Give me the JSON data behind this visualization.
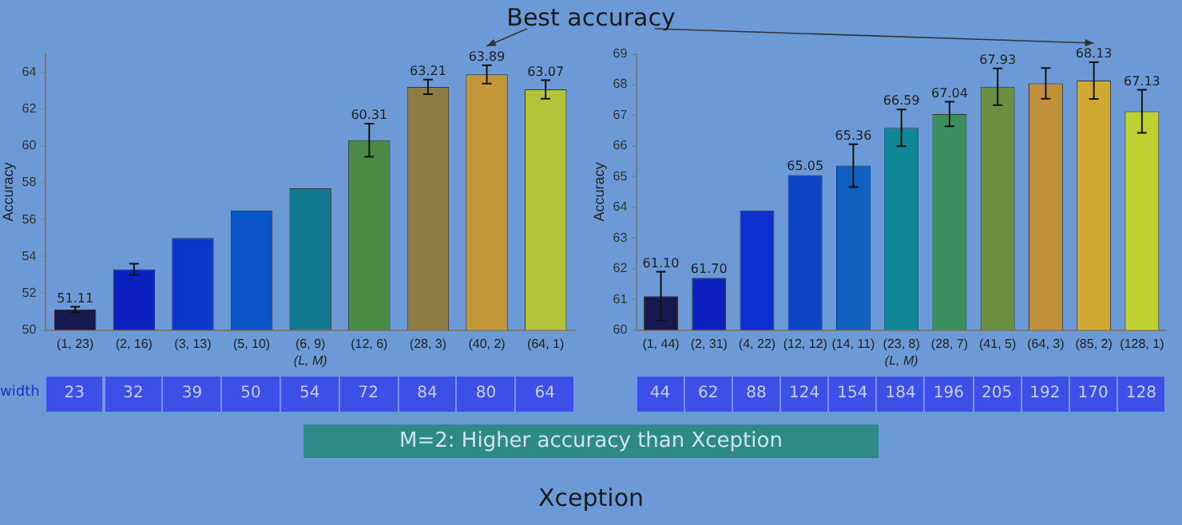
{
  "chart_data": [
    {
      "type": "bar",
      "ylabel": "Accuracy",
      "xlabel": "(L, M)",
      "categories": [
        "(1, 23)",
        "(2, 16)",
        "(3, 13)",
        "(5, 10)",
        "(6, 9)",
        "(12, 6)",
        "(28, 3)",
        "(40, 2)",
        "(64, 1)"
      ],
      "values": [
        51.11,
        53.3,
        55.0,
        56.5,
        57.7,
        60.31,
        63.21,
        63.89,
        63.07
      ],
      "colors": [
        "#16184f",
        "#0b20bf",
        "#0c38c9",
        "#0b55c6",
        "#10788f",
        "#4a8a45",
        "#8d7d45",
        "#c4963a",
        "#b3c43a"
      ],
      "errors": [
        0.15,
        0.3,
        null,
        null,
        null,
        0.9,
        0.4,
        0.5,
        0.5
      ],
      "value_labels": [
        "51.11",
        null,
        null,
        null,
        null,
        "60.31",
        "63.21",
        "63.89",
        "63.07"
      ],
      "ylim": [
        50,
        65
      ],
      "yticks": [
        50,
        52,
        54,
        56,
        58,
        60,
        62,
        64
      ],
      "grid": false,
      "annotations": [
        "Best accuracy",
        "M=2: Higher accuracy than Xception",
        "Xception",
        "width",
        "23",
        "32",
        "39",
        "50",
        "54",
        "72",
        "84",
        "80",
        "64"
      ]
    },
    {
      "type": "bar",
      "ylabel": "Accuracy",
      "xlabel": "(L, M)",
      "categories": [
        "(1, 44)",
        "(2, 31)",
        "(4, 22)",
        "(12, 12)",
        "(14, 11)",
        "(23, 8)",
        "(28, 7)",
        "(41, 5)",
        "(64, 3)",
        "(85, 2)",
        "(128, 1)"
      ],
      "values": [
        61.1,
        61.7,
        63.9,
        65.05,
        65.36,
        66.59,
        67.04,
        67.93,
        68.04,
        68.13,
        67.13
      ],
      "colors": [
        "#16184f",
        "#0b20bf",
        "#0b30cf",
        "#0d45c6",
        "#1060bf",
        "#0f8796",
        "#3a8f5e",
        "#6a9040",
        "#c0903a",
        "#d0a832",
        "#bfd030"
      ],
      "errors": [
        0.8,
        null,
        null,
        null,
        0.7,
        0.6,
        0.4,
        0.6,
        0.5,
        0.6,
        0.7
      ],
      "value_labels": [
        "61.10",
        "61.70",
        null,
        "65.05",
        "65.36",
        "66.59",
        "67.04",
        "67.93",
        null,
        "68.13",
        "67.13"
      ],
      "ylim": [
        60,
        69
      ],
      "yticks": [
        60,
        61,
        62,
        63,
        64,
        65,
        66,
        67,
        68,
        69
      ],
      "grid": false,
      "annotations": [
        "44",
        "62",
        "88",
        "124",
        "154",
        "184",
        "196",
        "205",
        "192",
        "170",
        "128"
      ]
    }
  ]
}
